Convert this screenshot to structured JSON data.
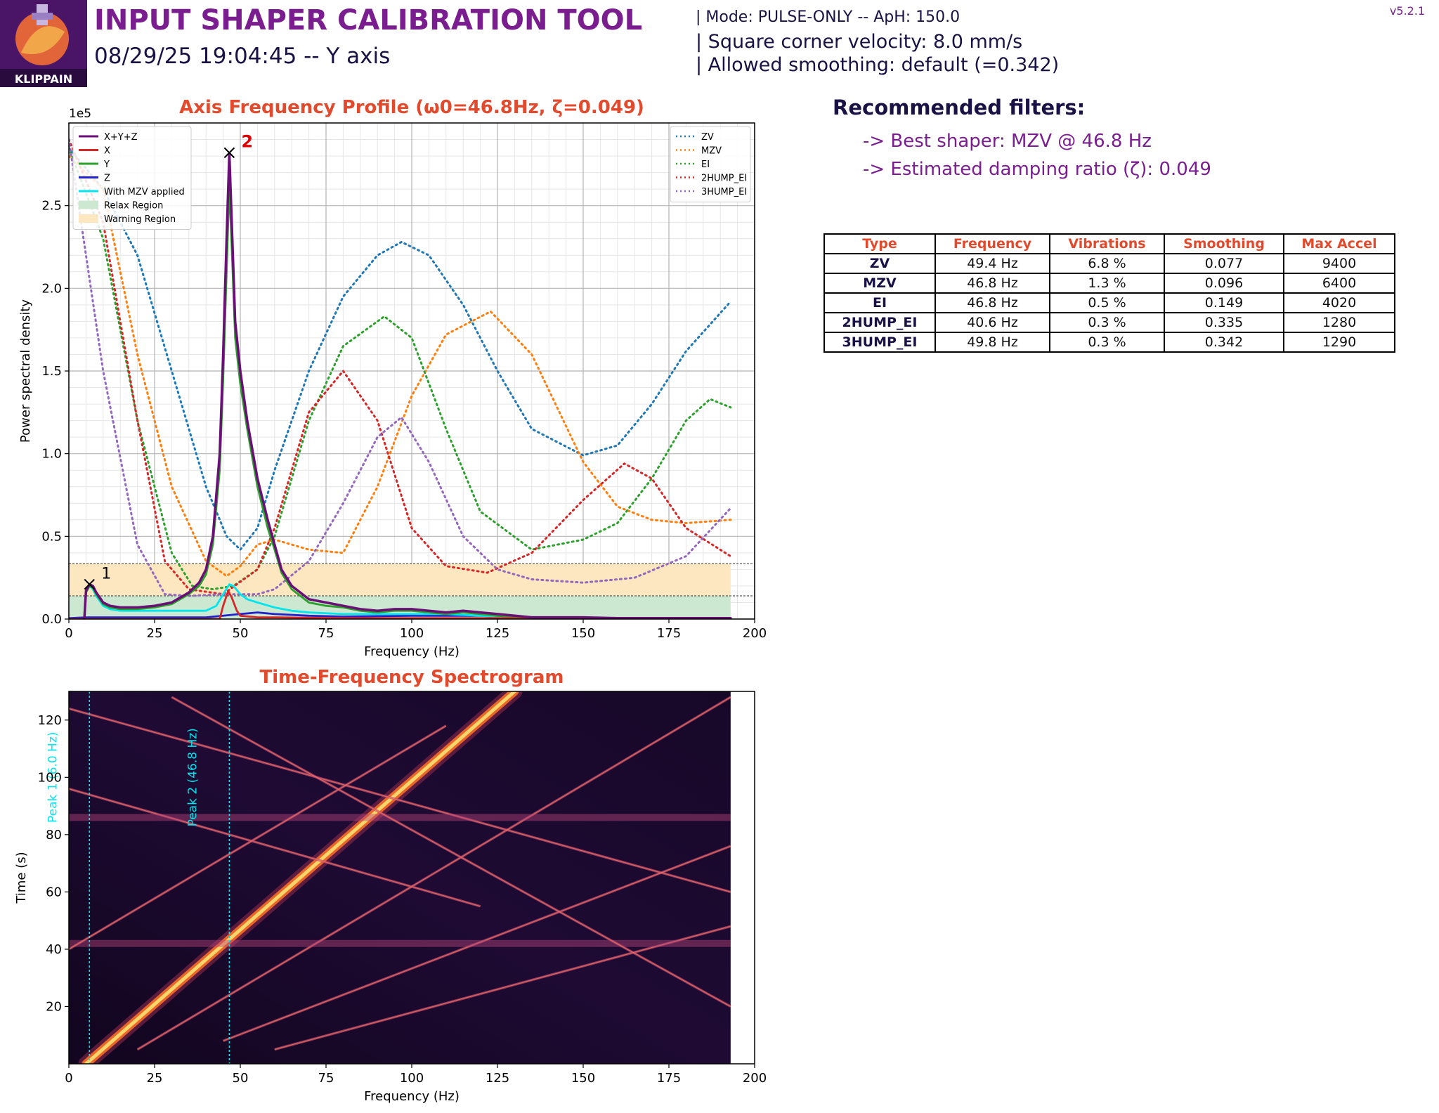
{
  "header": {
    "title": "INPUT SHAPER CALIBRATION TOOL",
    "subtitle": "08/29/25 19:04:45 -- Y axis",
    "mode_line": "| Mode: PULSE-ONLY -- ApH: 150.0",
    "scv_line": "| Square corner velocity: 8.0 mm/s",
    "smoothing_line": "| Allowed smoothing: default (=0.342)",
    "version": "v5.2.1",
    "logo_text": "KLIPPAIN"
  },
  "recommendations": {
    "title": "Recommended filters:",
    "items": [
      "-> Best shaper: MZV @ 46.8 Hz",
      "-> Estimated damping ratio (ζ): 0.049"
    ]
  },
  "filters_table": {
    "headers": [
      "Type",
      "Frequency",
      "Vibrations",
      "Smoothing",
      "Max Accel"
    ],
    "rows": [
      [
        "ZV",
        "49.4 Hz",
        "6.8 %",
        "0.077",
        "9400"
      ],
      [
        "MZV",
        "46.8 Hz",
        "1.3 %",
        "0.096",
        "6400"
      ],
      [
        "EI",
        "46.8 Hz",
        "0.5 %",
        "0.149",
        "4020"
      ],
      [
        "2HUMP_EI",
        "40.6 Hz",
        "0.3 %",
        "0.335",
        "1280"
      ],
      [
        "3HUMP_EI",
        "49.8 Hz",
        "0.3 %",
        "0.342",
        "1290"
      ]
    ]
  },
  "colors": {
    "title": "#7a1e8f",
    "chart_title": "#e24a2d",
    "xyz": "#6a0f75",
    "x": "#d62728",
    "y": "#2ca02c",
    "z": "#2222cc",
    "mzv_applied": "#00e5ee",
    "relax": "#cde8d0",
    "warning": "#fde7c1",
    "zv": "#1f77b4",
    "mzv": "#ff7f0e",
    "ei": "#2ca02c",
    "2hump_ei": "#d62728",
    "3hump_ei": "#9467bd"
  },
  "chart_data": [
    {
      "type": "line",
      "title": "Axis Frequency Profile (ω0=46.8Hz, ζ=0.049)",
      "xlabel": "Frequency (Hz)",
      "ylabel": "Power spectral density",
      "y_multiplier_label": "1e5",
      "xlim": [
        0,
        200
      ],
      "ylim": [
        0,
        3.0
      ],
      "xticks": [
        0,
        25,
        50,
        75,
        100,
        125,
        150,
        175,
        200
      ],
      "yticks": [
        0.0,
        0.5,
        1.0,
        1.5,
        2.0,
        2.5
      ],
      "grid": true,
      "legend_left": [
        "X+Y+Z",
        "X",
        "Y",
        "Z",
        "With MZV applied",
        "Relax Region",
        "Warning Region"
      ],
      "legend_right": [
        "ZV",
        "MZV",
        "EI",
        "2HUMP_EI",
        "3HUMP_EI"
      ],
      "legend_left_placement": "top-left",
      "legend_right_placement": "top-right",
      "regions": {
        "relax": {
          "x": [
            0,
            193
          ],
          "y": [
            0,
            0.14
          ]
        },
        "warning": {
          "x": [
            0,
            193
          ],
          "y": [
            0.14,
            0.335
          ]
        }
      },
      "peaks": [
        {
          "label": "1",
          "x": 6.0,
          "y": 0.21
        },
        {
          "label": "2",
          "x": 46.8,
          "y": 2.82
        }
      ],
      "series": [
        {
          "name": "X+Y+Z",
          "x": [
            4.5,
            5,
            6,
            7,
            8,
            10,
            12,
            15,
            20,
            25,
            30,
            35,
            38,
            40,
            42,
            44,
            45,
            46,
            46.8,
            47.5,
            48.5,
            50,
            52,
            55,
            58,
            60,
            62,
            65,
            70,
            75,
            80,
            85,
            90,
            95,
            100,
            105,
            110,
            115,
            120,
            125,
            130,
            135,
            140,
            150,
            160,
            170,
            180,
            190,
            193
          ],
          "y": [
            0,
            0.17,
            0.21,
            0.2,
            0.16,
            0.1,
            0.08,
            0.07,
            0.07,
            0.08,
            0.1,
            0.16,
            0.22,
            0.3,
            0.5,
            1.0,
            1.6,
            2.3,
            2.82,
            2.4,
            1.8,
            1.5,
            1.2,
            0.85,
            0.6,
            0.45,
            0.3,
            0.2,
            0.12,
            0.1,
            0.08,
            0.06,
            0.05,
            0.06,
            0.06,
            0.05,
            0.04,
            0.05,
            0.04,
            0.03,
            0.02,
            0.01,
            0.01,
            0.01,
            0.005,
            0.005,
            0.005,
            0.005,
            0.005
          ]
        },
        {
          "name": "Y",
          "x": [
            4.5,
            5,
            6,
            7,
            8,
            10,
            12,
            15,
            20,
            25,
            30,
            35,
            38,
            40,
            42,
            44,
            45,
            46,
            46.8,
            47.5,
            48.5,
            50,
            52,
            55,
            58,
            60,
            62,
            65,
            70,
            75,
            80,
            85,
            90,
            95,
            100,
            105,
            110,
            115,
            120,
            125,
            130,
            135,
            140,
            150,
            160,
            170,
            180,
            190,
            193
          ],
          "y": [
            0,
            0.16,
            0.2,
            0.19,
            0.15,
            0.09,
            0.07,
            0.06,
            0.06,
            0.07,
            0.09,
            0.15,
            0.2,
            0.27,
            0.45,
            0.9,
            1.45,
            2.1,
            2.62,
            2.25,
            1.7,
            1.42,
            1.15,
            0.8,
            0.55,
            0.42,
            0.28,
            0.18,
            0.1,
            0.08,
            0.07,
            0.05,
            0.04,
            0.05,
            0.05,
            0.04,
            0.03,
            0.04,
            0.03,
            0.02,
            0.015,
            0.01,
            0.01,
            0.01,
            0.005,
            0.005,
            0.005,
            0.005,
            0.005
          ]
        },
        {
          "name": "X",
          "x": [
            0,
            44,
            45,
            46.5,
            47.5,
            49,
            50,
            55,
            60,
            80,
            120,
            160,
            193
          ],
          "y": [
            0,
            0,
            0.08,
            0.17,
            0.13,
            0.05,
            0.02,
            0.01,
            0.01,
            0.005,
            0.005,
            0.005,
            0.005
          ]
        },
        {
          "name": "Z",
          "x": [
            0,
            5,
            10,
            20,
            40,
            50,
            55,
            60,
            70,
            80,
            100,
            120,
            130,
            140,
            160,
            193
          ],
          "y": [
            0.005,
            0.01,
            0.01,
            0.01,
            0.01,
            0.03,
            0.04,
            0.03,
            0.02,
            0.015,
            0.02,
            0.02,
            0.01,
            0.005,
            0.005,
            0.005
          ]
        },
        {
          "name": "With MZV applied",
          "x": [
            4.5,
            5,
            6,
            7,
            8,
            10,
            12,
            15,
            20,
            25,
            30,
            35,
            40,
            43,
            45,
            46.8,
            48,
            50,
            52,
            55,
            60,
            65,
            70,
            80,
            90,
            100,
            110,
            120,
            130,
            140,
            160,
            193
          ],
          "y": [
            0,
            0.16,
            0.2,
            0.18,
            0.14,
            0.08,
            0.06,
            0.05,
            0.05,
            0.05,
            0.05,
            0.05,
            0.05,
            0.08,
            0.15,
            0.21,
            0.2,
            0.15,
            0.12,
            0.1,
            0.07,
            0.05,
            0.04,
            0.03,
            0.03,
            0.03,
            0.03,
            0.02,
            0.01,
            0.005,
            0.005,
            0.005
          ]
        },
        {
          "name": "ZV",
          "x": [
            0,
            10,
            20,
            30,
            40,
            46,
            50,
            55,
            60,
            70,
            80,
            90,
            97,
            105,
            115,
            125,
            135,
            150,
            160,
            170,
            180,
            193
          ],
          "y": [
            2.85,
            2.6,
            2.2,
            1.5,
            0.8,
            0.5,
            0.42,
            0.55,
            0.9,
            1.5,
            1.95,
            2.2,
            2.28,
            2.2,
            1.9,
            1.5,
            1.15,
            0.99,
            1.05,
            1.3,
            1.62,
            1.92
          ]
        },
        {
          "name": "MZV",
          "x": [
            0,
            10,
            20,
            30,
            40,
            46,
            50,
            55,
            60,
            70,
            80,
            90,
            100,
            110,
            123,
            135,
            150,
            160,
            170,
            180,
            193
          ],
          "y": [
            2.8,
            2.6,
            1.6,
            0.8,
            0.35,
            0.26,
            0.32,
            0.45,
            0.48,
            0.42,
            0.4,
            0.8,
            1.35,
            1.72,
            1.86,
            1.6,
            0.95,
            0.68,
            0.6,
            0.58,
            0.6
          ]
        },
        {
          "name": "EI",
          "x": [
            0,
            10,
            20,
            30,
            36,
            42,
            48,
            55,
            60,
            70,
            80,
            92,
            100,
            110,
            120,
            135,
            150,
            160,
            170,
            180,
            187,
            193
          ],
          "y": [
            2.85,
            2.3,
            1.2,
            0.4,
            0.2,
            0.18,
            0.2,
            0.3,
            0.5,
            1.2,
            1.65,
            1.83,
            1.7,
            1.15,
            0.65,
            0.42,
            0.48,
            0.58,
            0.85,
            1.2,
            1.33,
            1.28
          ]
        },
        {
          "name": "2HUMP_EI",
          "x": [
            0,
            10,
            20,
            28,
            35,
            45,
            55,
            60,
            70,
            80,
            90,
            100,
            110,
            122,
            135,
            150,
            162,
            170,
            180,
            193
          ],
          "y": [
            2.9,
            2.4,
            1.2,
            0.35,
            0.18,
            0.15,
            0.3,
            0.55,
            1.25,
            1.5,
            1.2,
            0.55,
            0.32,
            0.28,
            0.4,
            0.72,
            0.94,
            0.85,
            0.55,
            0.38
          ]
        },
        {
          "name": "3HUMP_EI",
          "x": [
            0,
            10,
            20,
            28,
            35,
            45,
            55,
            60,
            70,
            80,
            90,
            97,
            105,
            115,
            125,
            135,
            150,
            165,
            180,
            193
          ],
          "y": [
            2.9,
            1.5,
            0.45,
            0.15,
            0.14,
            0.15,
            0.15,
            0.18,
            0.35,
            0.7,
            1.1,
            1.22,
            0.95,
            0.5,
            0.3,
            0.24,
            0.22,
            0.25,
            0.38,
            0.67
          ]
        }
      ]
    },
    {
      "type": "heatmap",
      "title": "Time-Frequency Spectrogram",
      "xlabel": "Frequency (Hz)",
      "ylabel": "Time (s)",
      "xlim": [
        0,
        200
      ],
      "ylim": [
        0,
        130
      ],
      "data_xmax": 193,
      "xticks": [
        0,
        25,
        50,
        75,
        100,
        125,
        150,
        175,
        200
      ],
      "yticks": [
        20,
        40,
        60,
        80,
        100,
        120
      ],
      "colormap": "inferno",
      "peak_lines": [
        {
          "label": "Peak 1 (6.0 Hz)",
          "x": 6.0
        },
        {
          "label": "Peak 2 (46.8 Hz)",
          "x": 46.8
        }
      ],
      "bright_traces": [
        {
          "kind": "main_sweep",
          "x": [
            5,
            130
          ],
          "y": [
            0,
            130
          ]
        },
        {
          "kind": "harmonic",
          "x": [
            0,
            193
          ],
          "y": [
            124,
            60
          ]
        },
        {
          "kind": "harmonic",
          "x": [
            0,
            120
          ],
          "y": [
            96,
            55
          ]
        },
        {
          "kind": "harmonic",
          "x": [
            45,
            193
          ],
          "y": [
            8,
            76
          ]
        },
        {
          "kind": "harmonic",
          "x": [
            20,
            193
          ],
          "y": [
            5,
            128
          ]
        },
        {
          "kind": "harmonic",
          "x": [
            60,
            193
          ],
          "y": [
            5,
            48
          ]
        },
        {
          "kind": "band",
          "x": [
            0,
            193
          ],
          "y": [
            42,
            42
          ]
        },
        {
          "kind": "band",
          "x": [
            0,
            193
          ],
          "y": [
            86,
            86
          ]
        },
        {
          "kind": "harmonic",
          "x": [
            0,
            110
          ],
          "y": [
            40,
            118
          ]
        },
        {
          "kind": "harmonic",
          "x": [
            30,
            193
          ],
          "y": [
            128,
            20
          ]
        }
      ]
    }
  ]
}
